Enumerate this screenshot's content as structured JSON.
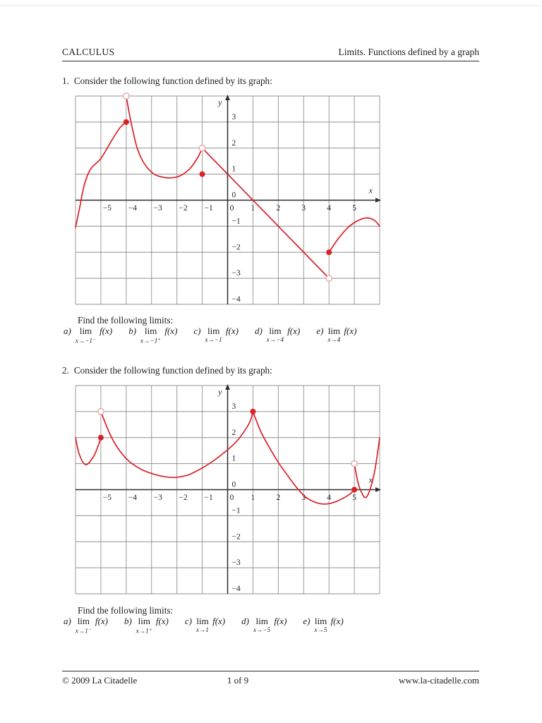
{
  "header": {
    "left": "CALCULUS",
    "right": "Limits. Functions defined by a graph"
  },
  "problems": [
    {
      "number": "1.",
      "prompt": "Consider the following function defined by its graph:",
      "find_text": "Find the following limits:",
      "limits": [
        {
          "label": "a)",
          "lim": "lim",
          "sub": "x→−1",
          "sup": "−",
          "expr": "f(x)"
        },
        {
          "label": "b)",
          "lim": "lim",
          "sub": "x→−1",
          "sup": "+",
          "expr": "f(x)"
        },
        {
          "label": "c)",
          "lim": "lim",
          "sub": "x→−1",
          "sup": "",
          "expr": "f(x)"
        },
        {
          "label": "d)",
          "lim": "lim",
          "sub": "x→−4",
          "sup": "",
          "expr": "f(x)"
        },
        {
          "label": "e)",
          "lim": "lim",
          "sub": "x→4",
          "sup": "",
          "expr": "f(x)"
        }
      ]
    },
    {
      "number": "2.",
      "prompt": "Consider the following function defined by its graph:",
      "find_text": "Find the following limits:",
      "limits": [
        {
          "label": "a)",
          "lim": "lim",
          "sub": "x→1",
          "sup": "−",
          "expr": "f(x)"
        },
        {
          "label": "b)",
          "lim": "lim",
          "sub": "x→1",
          "sup": "+",
          "expr": "f(x)"
        },
        {
          "label": "c)",
          "lim": "lim",
          "sub": "x→1",
          "sup": "",
          "expr": "f(x)"
        },
        {
          "label": "d)",
          "lim": "lim",
          "sub": "x→−5",
          "sup": "",
          "expr": "f(x)"
        },
        {
          "label": "e)",
          "lim": "lim",
          "sub": "x→5",
          "sup": "",
          "expr": "f(x)"
        }
      ]
    }
  ],
  "chart_data": [
    {
      "type": "line",
      "title": "Piecewise function graph, problem 1",
      "xlabel": "x",
      "ylabel": "y",
      "xlim": [
        -6,
        6
      ],
      "ylim": [
        -4,
        4
      ],
      "x_ticks": [
        -5,
        -4,
        -3,
        -2,
        -1,
        0,
        1,
        2,
        3,
        4,
        5
      ],
      "y_ticks": [
        3,
        2,
        1,
        0,
        -1,
        -2,
        -3,
        -4
      ],
      "grid": true,
      "grid_color": "#909090",
      "axis_color": "#2e2e2e",
      "curve_color": "#da2128",
      "open_point_color": "#ef9e9e",
      "branches": [
        [
          [
            -6,
            -1.05
          ],
          [
            -5.85,
            -0.35
          ],
          [
            -5.65,
            0.6
          ],
          [
            -5.4,
            1.2
          ],
          [
            -5,
            1.6
          ],
          [
            -4.6,
            2.25
          ],
          [
            -4.25,
            2.78
          ],
          [
            -4,
            3
          ]
        ],
        [
          [
            -4,
            4
          ],
          [
            -3.8,
            2.95
          ],
          [
            -3.55,
            1.95
          ],
          [
            -3.25,
            1.35
          ],
          [
            -2.9,
            1.0
          ],
          [
            -2.55,
            0.88
          ],
          [
            -2.2,
            0.86
          ],
          [
            -1.85,
            0.95
          ],
          [
            -1.5,
            1.2
          ],
          [
            -1.2,
            1.6
          ],
          [
            -1,
            2
          ]
        ],
        [
          [
            -1,
            2
          ],
          [
            0.25,
            0.75
          ],
          [
            1.5,
            -0.5
          ],
          [
            2.75,
            -1.75
          ],
          [
            4,
            -3
          ]
        ],
        [
          [
            4,
            -2
          ],
          [
            4.35,
            -1.5
          ],
          [
            4.75,
            -1.05
          ],
          [
            5.15,
            -0.78
          ],
          [
            5.5,
            -0.68
          ],
          [
            5.8,
            -0.78
          ],
          [
            6,
            -1.0
          ]
        ]
      ],
      "filled_points": [
        [
          -4,
          3
        ],
        [
          -1,
          1
        ],
        [
          4,
          -2
        ]
      ],
      "open_points": [
        [
          -4,
          4
        ],
        [
          -1,
          2
        ],
        [
          4,
          -3
        ]
      ]
    },
    {
      "type": "line",
      "title": "Piecewise function graph, problem 2",
      "xlabel": "x",
      "ylabel": "y",
      "xlim": [
        -6,
        6
      ],
      "ylim": [
        -4,
        4
      ],
      "x_ticks": [
        -5,
        -4,
        -3,
        -2,
        -1,
        0,
        1,
        2,
        3,
        4,
        5
      ],
      "y_ticks": [
        3,
        2,
        1,
        0,
        -1,
        -2,
        -3,
        -4
      ],
      "grid": true,
      "grid_color": "#909090",
      "axis_color": "#2e2e2e",
      "curve_color": "#da2128",
      "open_point_color": "#ef9e9e",
      "branches": [
        [
          [
            -6,
            2
          ],
          [
            -5.85,
            1.35
          ],
          [
            -5.6,
            0.96
          ],
          [
            -5.3,
            1.25
          ],
          [
            -5.1,
            1.7
          ],
          [
            -5,
            2
          ]
        ],
        [
          [
            -5,
            3
          ],
          [
            -4.65,
            2.15
          ],
          [
            -4.3,
            1.55
          ],
          [
            -3.9,
            1.1
          ],
          [
            -3.45,
            0.8
          ],
          [
            -3,
            0.62
          ],
          [
            -2.5,
            0.5
          ],
          [
            -2.1,
            0.47
          ],
          [
            -1.6,
            0.55
          ],
          [
            -1.1,
            0.78
          ],
          [
            -0.6,
            1.08
          ],
          [
            -0.1,
            1.45
          ],
          [
            0.35,
            1.85
          ],
          [
            0.7,
            2.3
          ],
          [
            0.9,
            2.65
          ],
          [
            1,
            3
          ]
        ],
        [
          [
            1,
            3
          ],
          [
            1.3,
            2.25
          ],
          [
            1.6,
            1.7
          ],
          [
            2,
            1.05
          ],
          [
            2.4,
            0.5
          ],
          [
            2.75,
            0.05
          ],
          [
            3.1,
            -0.3
          ],
          [
            3.5,
            -0.5
          ],
          [
            3.9,
            -0.55
          ],
          [
            4.3,
            -0.45
          ],
          [
            4.65,
            -0.28
          ],
          [
            4.85,
            -0.15
          ],
          [
            5,
            0
          ]
        ],
        [
          [
            5,
            1
          ],
          [
            5.15,
            0.25
          ],
          [
            5.32,
            -0.18
          ],
          [
            5.45,
            -0.3
          ],
          [
            5.6,
            -0.05
          ],
          [
            5.78,
            0.6
          ],
          [
            5.9,
            1.3
          ],
          [
            6,
            2
          ]
        ]
      ],
      "filled_points": [
        [
          -5,
          2
        ],
        [
          1,
          3
        ],
        [
          5,
          0
        ]
      ],
      "open_points": [
        [
          -5,
          3
        ],
        [
          5,
          1
        ]
      ]
    }
  ],
  "footer": {
    "left": "© 2009 La Citadelle",
    "center": "1 of 9",
    "right": "www.la-citadelle.com"
  }
}
